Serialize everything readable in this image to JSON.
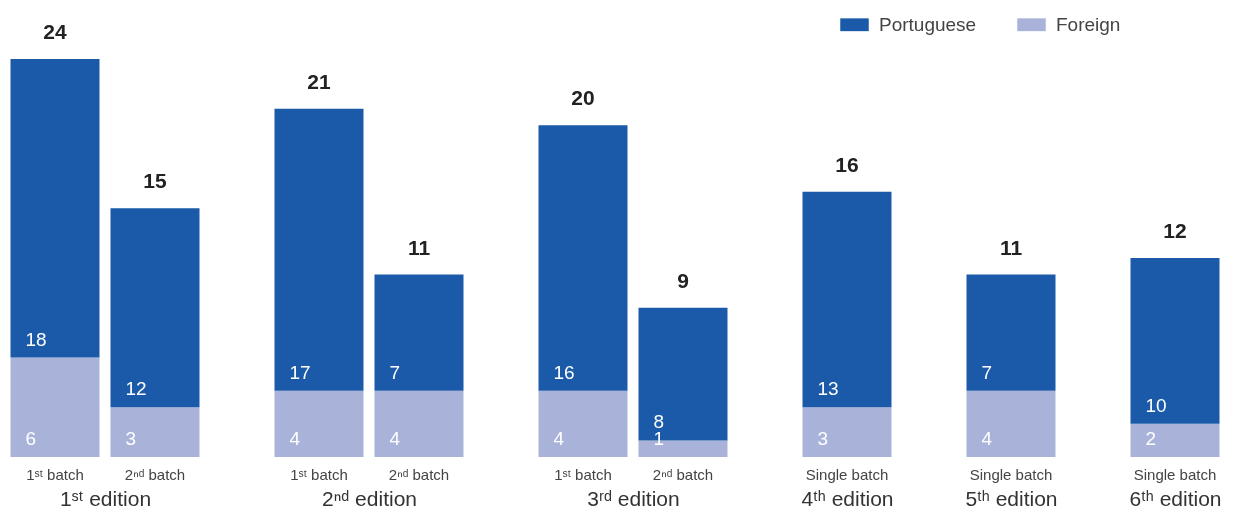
{
  "chart_data": [
    {
      "type": "bar",
      "stacked": true,
      "xlabel": "1ˢᵗ edition",
      "categories": [
        "1ˢᵗ batch",
        "2ⁿᵈ batch"
      ],
      "series": [
        {
          "name": "Foreign",
          "color": "#a9b3da",
          "values": [
            6,
            3
          ]
        },
        {
          "name": "Portuguese",
          "color": "#1a5aa8",
          "values": [
            18,
            12
          ]
        }
      ],
      "totals": [
        "24",
        "15"
      ],
      "data_labels": true,
      "tick_labels": "x",
      "legend": "top right"
    },
    {
      "type": "bar",
      "stacked": true,
      "xlabel": "2ⁿᵈ edition",
      "categories": [
        "1ˢᵗ batch",
        "2ⁿᵈ batch"
      ],
      "series": [
        {
          "name": "Foreign",
          "color": "#a9b3da",
          "values": [
            4,
            4
          ]
        },
        {
          "name": "Portuguese",
          "color": "#1a5aa8",
          "values": [
            17,
            7
          ]
        }
      ],
      "totals": [
        "21",
        "11"
      ],
      "data_labels": true,
      "tick_labels": "x",
      "legend": "top right"
    },
    {
      "type": "bar",
      "stacked": true,
      "xlabel": "3ʳᵈ edition",
      "categories": [
        "1ˢᵗ batch",
        "2ⁿᵈ batch"
      ],
      "series": [
        {
          "name": "Foreign",
          "color": "#a9b3da",
          "values": [
            4,
            1
          ]
        },
        {
          "name": "Portuguese",
          "color": "#1a5aa8",
          "values": [
            16,
            8
          ]
        }
      ],
      "totals": [
        "20",
        "9"
      ],
      "data_labels": true,
      "tick_labels": "x",
      "legend": "top right"
    },
    {
      "type": "bar",
      "stacked": true,
      "xlabel": "4ᵗʰ edition",
      "categories": [
        "Single batch"
      ],
      "series": [
        {
          "name": "Foreign",
          "color": "#a9b3da",
          "values": [
            3
          ]
        },
        {
          "name": "Portuguese",
          "color": "#1a5aa8",
          "values": [
            13
          ]
        }
      ],
      "totals": [
        "16"
      ],
      "data_labels": true,
      "tick_labels": "x",
      "legend": "top right"
    },
    {
      "type": "bar",
      "stacked": true,
      "xlabel": "5ᵗʰ edition",
      "categories": [
        "Single batch"
      ],
      "series": [
        {
          "name": "Foreign",
          "color": "#a9b3da",
          "values": [
            4
          ]
        },
        {
          "name": "Portuguese",
          "color": "#1a5aa8",
          "values": [
            7
          ]
        }
      ],
      "totals": [
        "11"
      ],
      "data_labels": true,
      "tick_labels": "x",
      "legend": "top right"
    },
    {
      "type": "bar",
      "stacked": true,
      "xlabel": "6ᵗʰ edition",
      "categories": [
        "Single batch"
      ],
      "series": [
        {
          "name": "Foreign",
          "color": "#a9b3da",
          "values": [
            2
          ]
        },
        {
          "name": "Portuguese",
          "color": "#1a5aa8",
          "values": [
            10
          ]
        }
      ],
      "totals": [
        "12"
      ],
      "data_labels": true,
      "tick_labels": "x",
      "legend": "top right"
    }
  ]
}
